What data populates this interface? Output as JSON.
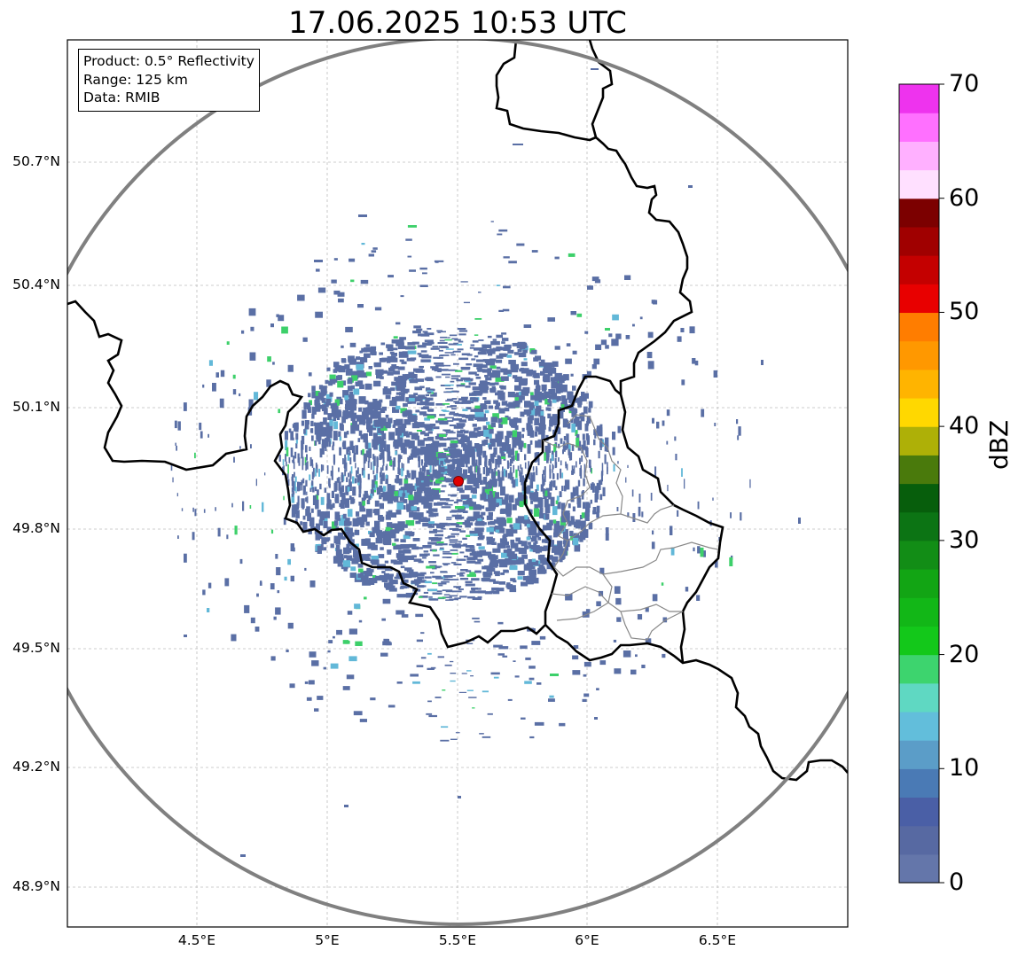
{
  "map": {
    "title": "17.06.2025 10:53 UTC",
    "info_box": {
      "product": "Product: 0.5° Reflectivity",
      "range": "Range: 125 km",
      "data": "Data: RMIB"
    },
    "lat_ticks": [
      "50.7°N",
      "50.4°N",
      "50.1°N",
      "49.8°N",
      "49.5°N",
      "49.2°N",
      "48.9°N"
    ],
    "lon_ticks": [
      "4.5°E",
      "5°E",
      "5.5°E",
      "6°E",
      "6.5°E"
    ],
    "radar_site": "radar-site-marker",
    "colors": {
      "range_ring": "#808080",
      "border": "#000000",
      "admin_border": "#888888",
      "grid": "#bdbdbd",
      "echo_main": "#5a6fa5",
      "echo_light": "#62b8d8",
      "echo_green": "#3dd06a",
      "marker": "#e00000"
    }
  },
  "colorbar": {
    "label": "dBZ",
    "ticks": [
      "70",
      "60",
      "50",
      "40",
      "30",
      "20",
      "10",
      "0"
    ],
    "min": 0,
    "max": 70,
    "colors": [
      "#6476aa",
      "#5769a2",
      "#4a5fa6",
      "#4a7ab5",
      "#5b9dc8",
      "#62bedb",
      "#5fd8c2",
      "#3dd46e",
      "#13c81a",
      "#12b717",
      "#12a514",
      "#128d16",
      "#0c7414",
      "#075e0c",
      "#4a7a0c",
      "#aeb007",
      "#ffd800",
      "#ffb400",
      "#ff9800",
      "#ff7d00",
      "#e80000",
      "#c40000",
      "#a00000",
      "#7c0000",
      "#ffe0ff",
      "#ffb0ff",
      "#ff70ff",
      "#ee33ee"
    ]
  }
}
